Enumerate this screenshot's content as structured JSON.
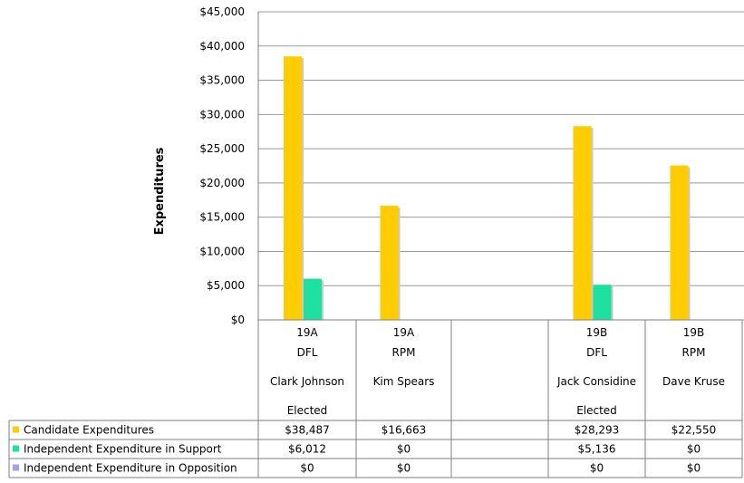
{
  "chart_data": {
    "type": "bar",
    "ylabel": "Expenditures",
    "xlabel": "",
    "ylim": [
      0,
      45000
    ],
    "y_ticks": [
      "$0",
      "$5,000",
      "$10,000",
      "$15,000",
      "$20,000",
      "$25,000",
      "$30,000",
      "$35,000",
      "$40,000",
      "$45,000"
    ],
    "grid": true,
    "legend": "table-below",
    "categories": [
      {
        "district": "19A",
        "party": "DFL",
        "name": "Clark Johnson",
        "status": "Elected"
      },
      {
        "district": "19A",
        "party": "RPM",
        "name": "Kim Spears",
        "status": ""
      },
      {
        "district": "",
        "party": "",
        "name": "",
        "status": ""
      },
      {
        "district": "19B",
        "party": "DFL",
        "name": "Jack Considine",
        "status": "Elected"
      },
      {
        "district": "19B",
        "party": "RPM",
        "name": "Dave Kruse",
        "status": ""
      }
    ],
    "series": [
      {
        "name": "Candidate Expenditures",
        "color": "#FFCC00",
        "values": [
          38487,
          16663,
          null,
          28293,
          22550
        ],
        "labels": [
          "$38,487",
          "$16,663",
          "",
          "$28,293",
          "$22,550"
        ]
      },
      {
        "name": "Independent Expenditure in Support",
        "color": "#1EE0A0",
        "values": [
          6012,
          0,
          null,
          5136,
          0
        ],
        "labels": [
          "$6,012",
          "$0",
          "",
          "$5,136",
          "$0"
        ]
      },
      {
        "name": "Independent Expenditure in Opposition",
        "color": "#A3A3E0",
        "values": [
          0,
          0,
          null,
          0,
          0
        ],
        "labels": [
          "$0",
          "$0",
          "",
          "$0",
          "$0"
        ]
      }
    ]
  }
}
